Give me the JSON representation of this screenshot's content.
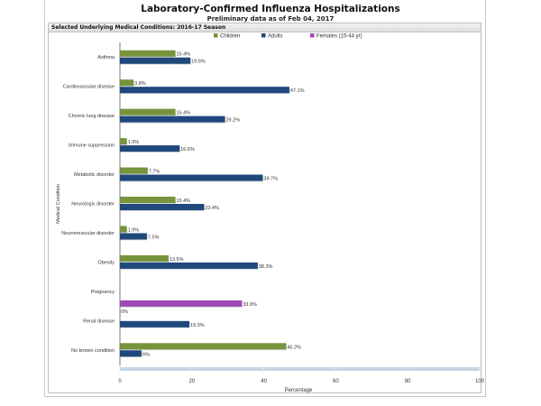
{
  "chart_data": {
    "type": "bar",
    "orientation": "horizontal",
    "title": "Laboratory-Confirmed Influenza Hospitalizations",
    "subtitle": "Preliminary data as of Feb 04, 2017",
    "panel_title": "Selected Underlying Medical Conditions: 2016-17 Season",
    "xlabel": "Percentage",
    "ylabel": "Medical Condition",
    "xlim": [
      0,
      100
    ],
    "x_ticks": [
      0,
      20,
      40,
      60,
      80,
      100
    ],
    "legend_position": "top-center",
    "categories": [
      "Asthma",
      "Cardiovascular disease",
      "Chronic lung disease",
      "Immune suppression",
      "Metabolic disorder",
      "Neurologic disorder",
      "Neuromuscular disorder",
      "Obesity",
      "Pregnancy",
      "Renal disease",
      "No known condition"
    ],
    "series": [
      {
        "name": "Children",
        "color": "#77933c",
        "values": [
          15.4,
          3.8,
          15.4,
          1.9,
          7.7,
          15.4,
          1.9,
          13.5,
          null,
          0,
          46.2
        ],
        "labels": [
          "15.4%",
          "3.8%",
          "15.4%",
          "1.9%",
          "7.7%",
          "15.4%",
          "1.9%",
          "13.5%",
          null,
          "0%",
          "46.2%"
        ]
      },
      {
        "name": "Adults",
        "color": "#1f497d",
        "values": [
          19.6,
          47.1,
          29.2,
          16.6,
          39.7,
          23.4,
          7.5,
          38.3,
          null,
          19.3,
          6
        ],
        "labels": [
          "19.6%",
          "47.1%",
          "29.2%",
          "16.6%",
          "39.7%",
          "23.4%",
          "7.5%",
          "38.3%",
          null,
          "19.3%",
          "6%"
        ]
      },
      {
        "name": "Females (15-44 yr)",
        "color": "#9e4ab5",
        "values": [
          null,
          null,
          null,
          null,
          null,
          null,
          null,
          null,
          33.9,
          null,
          null
        ],
        "labels": [
          null,
          null,
          null,
          null,
          null,
          null,
          null,
          null,
          "33.9%",
          null,
          null
        ]
      }
    ]
  }
}
